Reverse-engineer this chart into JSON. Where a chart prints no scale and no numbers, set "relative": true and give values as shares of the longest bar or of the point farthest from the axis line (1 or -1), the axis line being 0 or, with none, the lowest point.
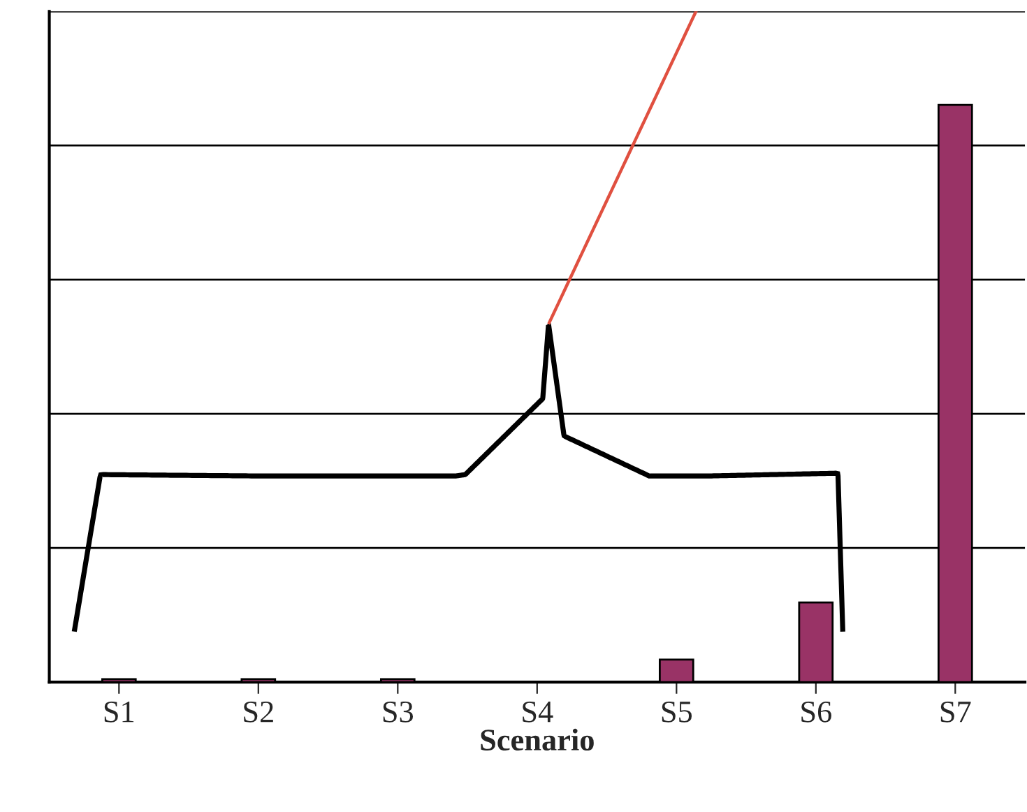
{
  "chart_data": {
    "type": "bar",
    "xlabel": "Scenario",
    "categories": [
      "S1",
      "S2",
      "S3",
      "S4",
      "S5",
      "S6",
      "S7"
    ],
    "values": [
      0.005,
      0.005,
      0.005,
      null,
      0.039,
      0.138,
      1
    ],
    "color": "#993366",
    "relative": true,
    "grid": "y"
  }
}
